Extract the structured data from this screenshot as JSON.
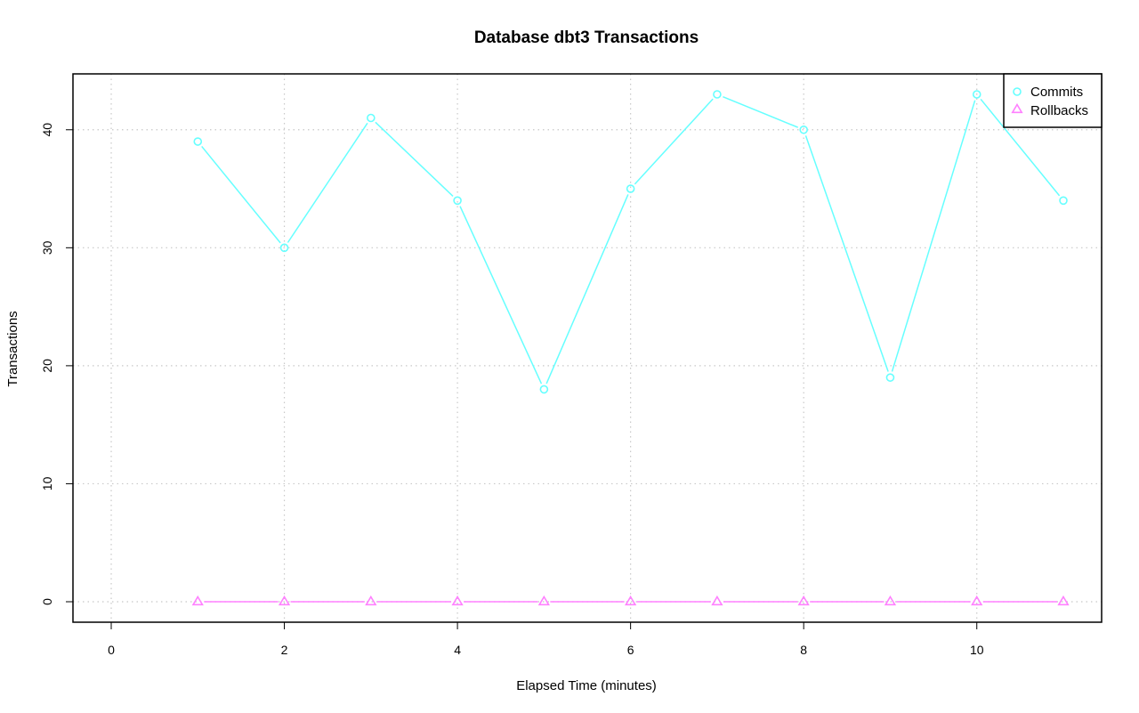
{
  "chart_data": {
    "type": "line",
    "title": "Database dbt3 Transactions",
    "xlabel": "Elapsed Time (minutes)",
    "ylabel": "Transactions",
    "x": [
      1,
      2,
      3,
      4,
      5,
      6,
      7,
      8,
      9,
      10,
      11
    ],
    "xlim": [
      0,
      11
    ],
    "ylim": [
      0,
      43
    ],
    "xticks": [
      0,
      2,
      4,
      6,
      8,
      10
    ],
    "yticks": [
      0,
      10,
      20,
      30,
      40
    ],
    "grid": true,
    "legend_position": "top-right",
    "series": [
      {
        "name": "Commits",
        "values": [
          39,
          30,
          41,
          34,
          18,
          35,
          43,
          40,
          19,
          43,
          34
        ],
        "color": "#66ffff",
        "marker": "circle"
      },
      {
        "name": "Rollbacks",
        "values": [
          0,
          0,
          0,
          0,
          0,
          0,
          0,
          0,
          0,
          0,
          0
        ],
        "color": "#ff80ff",
        "marker": "triangle"
      }
    ]
  }
}
